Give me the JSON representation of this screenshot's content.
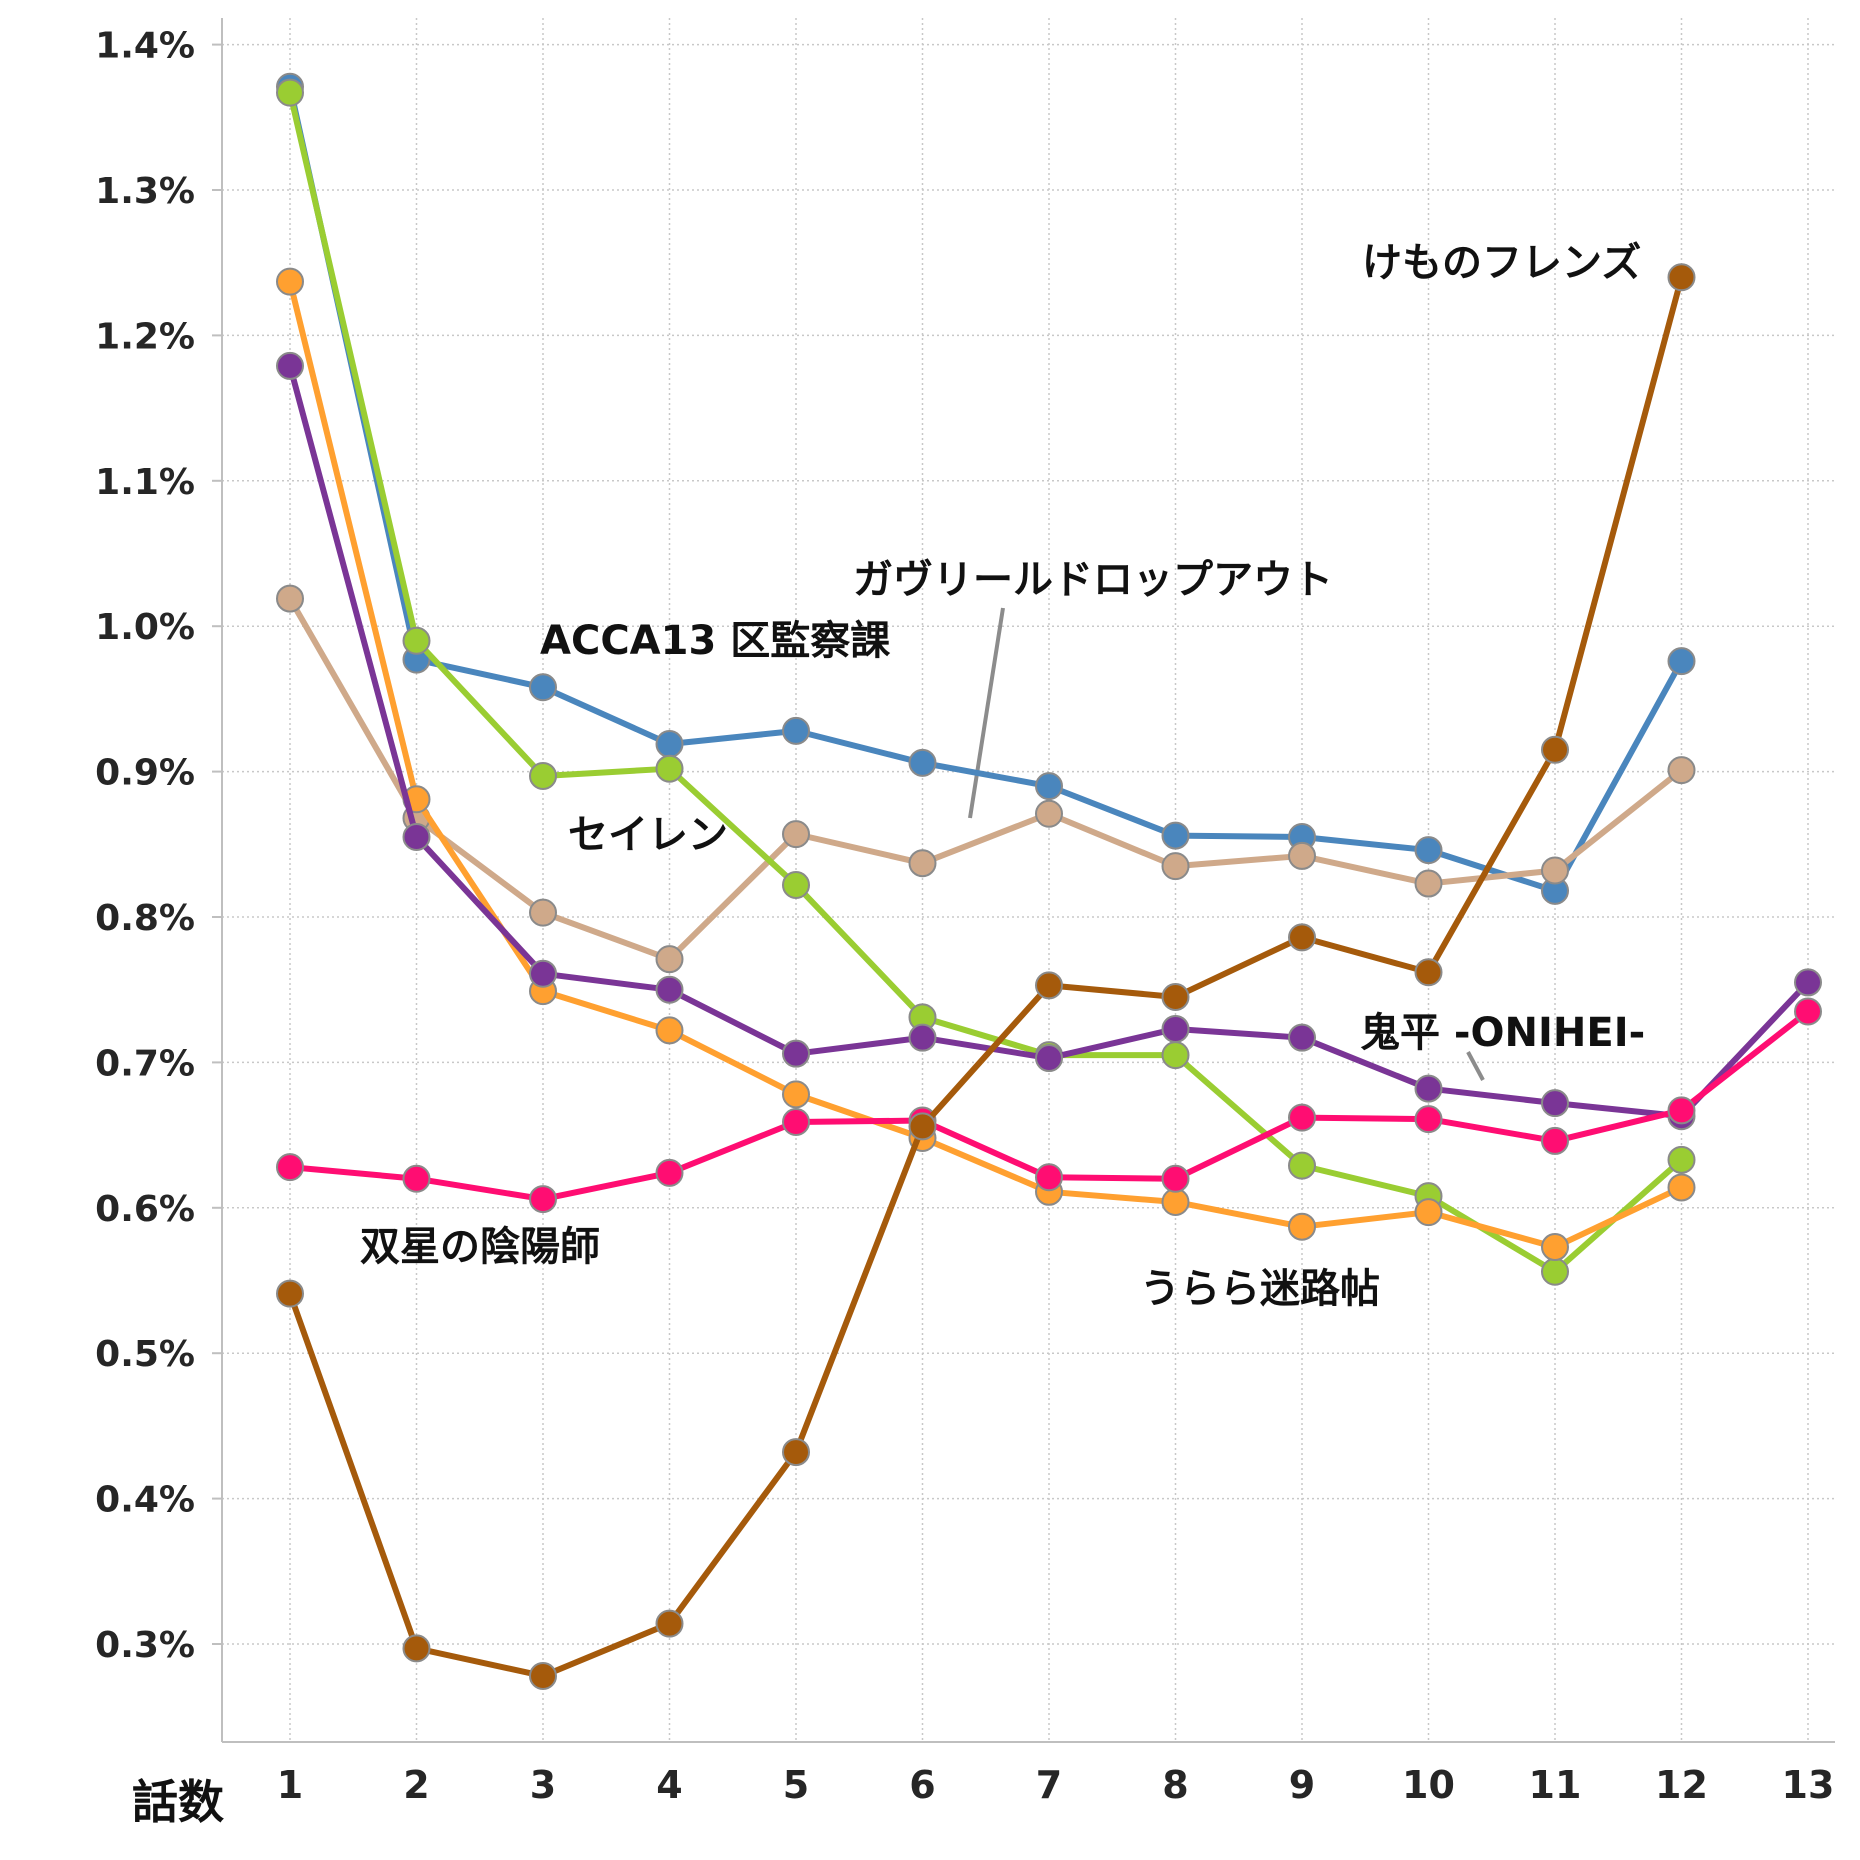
{
  "chart_data": {
    "type": "line",
    "title": "",
    "xlabel": "話数",
    "ylabel": "",
    "x": [
      1,
      2,
      3,
      4,
      5,
      6,
      7,
      8,
      9,
      10,
      11,
      12,
      13
    ],
    "ylim": [
      0.23,
      1.41
    ],
    "yticks": [
      0.3,
      0.4,
      0.5,
      0.6,
      0.7,
      0.8,
      0.9,
      1.0,
      1.1,
      1.2,
      1.3,
      1.4
    ],
    "ytick_labels": [
      "0.3%",
      "0.4%",
      "0.5%",
      "0.6%",
      "0.7%",
      "0.8%",
      "0.9%",
      "1.0%",
      "1.1%",
      "1.2%",
      "1.3%",
      "1.4%"
    ],
    "grid": true,
    "legend": "none",
    "series": [
      {
        "name": "ACCA13 区監察課",
        "color": "#4a86bd",
        "values": [
          1.371,
          0.977,
          0.958,
          0.919,
          0.928,
          0.906,
          0.89,
          0.856,
          0.855,
          0.846,
          0.818,
          0.976,
          null
        ]
      },
      {
        "name": "ガヴリールドロップアウト",
        "color": "#cfa98a",
        "values": [
          1.019,
          0.868,
          0.803,
          0.771,
          0.857,
          0.837,
          0.871,
          0.835,
          0.842,
          0.823,
          0.832,
          0.901,
          null
        ]
      },
      {
        "name": "セイレン",
        "color": "#9acd32",
        "values": [
          1.367,
          0.99,
          0.897,
          0.902,
          0.822,
          0.731,
          0.705,
          0.705,
          0.629,
          0.608,
          0.556,
          0.633,
          null
        ]
      },
      {
        "name": "うらら迷路帖",
        "color": "#ffa030",
        "values": [
          1.237,
          0.881,
          0.749,
          0.722,
          0.678,
          0.648,
          0.611,
          0.604,
          0.587,
          0.597,
          0.573,
          0.614,
          null
        ]
      },
      {
        "name": "鬼平 -ONIHEI-",
        "color": "#7a3596",
        "values": [
          1.179,
          0.855,
          0.761,
          0.75,
          0.706,
          0.717,
          0.703,
          0.723,
          0.717,
          0.682,
          0.672,
          0.663,
          0.755
        ]
      },
      {
        "name": "双星の陰陽師",
        "color": "#ff0d72",
        "values": [
          0.628,
          0.62,
          0.606,
          0.624,
          0.659,
          0.66,
          0.621,
          0.62,
          0.662,
          0.661,
          0.646,
          0.667,
          0.735
        ]
      },
      {
        "name": "けものフレンズ",
        "color": "#a55a0b",
        "values": [
          0.541,
          0.297,
          0.278,
          0.314,
          0.432,
          0.656,
          0.753,
          0.745,
          0.786,
          0.762,
          0.915,
          1.24,
          null
        ]
      }
    ],
    "annotations": [
      {
        "text": "けものフレンズ"
      },
      {
        "text": "ガヴリールドロップアウト"
      },
      {
        "text": "ACCA13 区監察課"
      },
      {
        "text": "セイレン"
      },
      {
        "text": "鬼平 -ONIHEI-"
      },
      {
        "text": "双星の陰陽師"
      },
      {
        "text": "うらら迷路帖"
      }
    ]
  }
}
